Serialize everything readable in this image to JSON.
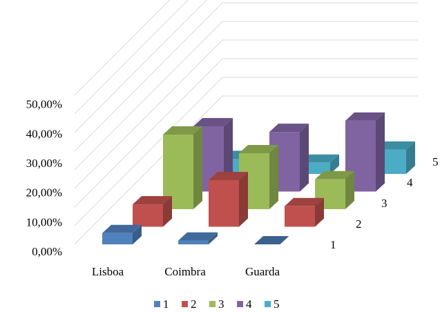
{
  "chart_data": {
    "type": "bar",
    "subtype": "3d-column",
    "title": "",
    "xlabel": "",
    "ylabel": "",
    "categories": [
      "Lisboa",
      "Coimbra",
      "Guarda"
    ],
    "y_tick_labels": [
      "0,00%",
      "10,00%",
      "20,00%",
      "30,00%",
      "40,00%",
      "50,00%"
    ],
    "ylim": [
      0,
      80
    ],
    "depth_labels": [
      "1",
      "2",
      "3",
      "4",
      "5"
    ],
    "series": [
      {
        "name": "1",
        "color": "#4F81BD",
        "values": [
          6,
          2,
          0
        ]
      },
      {
        "name": "2",
        "color": "#C0504D",
        "values": [
          12,
          25,
          11
        ]
      },
      {
        "name": "3",
        "color": "#9BBB59",
        "values": [
          40,
          30,
          16
        ]
      },
      {
        "name": "4",
        "color": "#8064A2",
        "values": [
          35,
          32,
          38
        ]
      },
      {
        "name": "5",
        "color": "#4BACC6",
        "values": [
          8,
          6,
          13
        ]
      }
    ],
    "legend_labels": [
      "1",
      "2",
      "3",
      "4",
      "5"
    ],
    "legend_position": "bottom",
    "grid": true
  }
}
